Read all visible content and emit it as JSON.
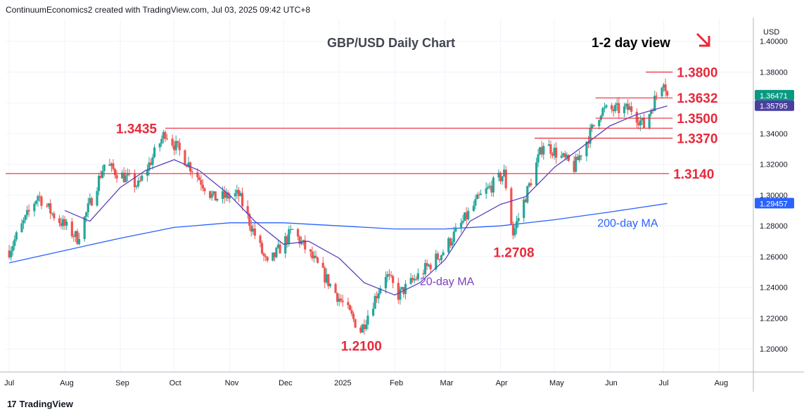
{
  "attribution": "ContinuumEconomics2 created with TradingView.com, Jul 03, 2025 09:42 UTC+8",
  "footer": {
    "brand": "TradingView",
    "logo_icon": "tradingview-logo-icon"
  },
  "colors": {
    "up": "#26a69a",
    "down": "#ef5350",
    "ma20": "#5b3fbf",
    "ma200": "#2962ff",
    "level": "#e8293b",
    "grid": "#f0f3fa"
  },
  "chart_data": {
    "type": "candlestick",
    "title": "GBP/USD Daily Chart",
    "view_label": "1-2 day view",
    "view_icon": "arrow-down-right-icon",
    "currency": "USD",
    "ylim": [
      1.185,
      1.4145
    ],
    "y_ticks": [
      "1.20000",
      "1.22000",
      "1.24000",
      "1.26000",
      "1.28000",
      "1.30000",
      "1.32000",
      "1.34000",
      "1.36000",
      "1.38000",
      "1.40000"
    ],
    "x_labels": [
      {
        "label": "Jul",
        "date": "2024-07-01"
      },
      {
        "label": "Aug",
        "date": "2024-08-01"
      },
      {
        "label": "Sep",
        "date": "2024-09-01"
      },
      {
        "label": "Oct",
        "date": "2024-10-01"
      },
      {
        "label": "Nov",
        "date": "2024-11-01"
      },
      {
        "label": "Dec",
        "date": "2024-12-01"
      },
      {
        "label": "2025",
        "date": "2025-01-01"
      },
      {
        "label": "Feb",
        "date": "2025-02-01"
      },
      {
        "label": "Mar",
        "date": "2025-03-01"
      },
      {
        "label": "Apr",
        "date": "2025-04-01"
      },
      {
        "label": "May",
        "date": "2025-05-01"
      },
      {
        "label": "Jun",
        "date": "2025-06-01"
      },
      {
        "label": "Jul",
        "date": "2025-07-01"
      },
      {
        "label": "Aug",
        "date": "2025-08-01"
      }
    ],
    "xlim": [
      "2024-06-29",
      "2025-08-20"
    ],
    "price_path": [
      [
        "2024-07-01",
        1.264
      ],
      [
        "2024-07-17",
        1.3
      ],
      [
        "2024-07-25",
        1.288
      ],
      [
        "2024-08-08",
        1.272
      ],
      [
        "2024-08-23",
        1.32
      ],
      [
        "2024-09-11",
        1.306
      ],
      [
        "2024-09-26",
        1.341
      ],
      [
        "2024-10-23",
        1.298
      ],
      [
        "2024-11-06",
        1.3
      ],
      [
        "2024-11-22",
        1.254
      ],
      [
        "2024-12-06",
        1.277
      ],
      [
        "2024-12-20",
        1.254
      ],
      [
        "2025-01-13",
        1.212
      ],
      [
        "2025-01-27",
        1.249
      ],
      [
        "2025-02-03",
        1.235
      ],
      [
        "2025-02-27",
        1.262
      ],
      [
        "2025-03-20",
        1.298
      ],
      [
        "2025-04-03",
        1.314
      ],
      [
        "2025-04-08",
        1.275
      ],
      [
        "2025-04-25",
        1.334
      ],
      [
        "2025-05-12",
        1.318
      ],
      [
        "2025-05-27",
        1.355
      ],
      [
        "2025-06-13",
        1.356
      ],
      [
        "2025-06-20",
        1.345
      ],
      [
        "2025-07-01",
        1.376
      ],
      [
        "2025-07-03",
        1.3647
      ]
    ],
    "ma20": [
      [
        "2024-08-01",
        1.29
      ],
      [
        "2024-08-15",
        1.283
      ],
      [
        "2024-09-01",
        1.305
      ],
      [
        "2024-09-15",
        1.316
      ],
      [
        "2024-10-01",
        1.323
      ],
      [
        "2024-10-15",
        1.316
      ],
      [
        "2024-11-01",
        1.3
      ],
      [
        "2024-11-15",
        1.283
      ],
      [
        "2024-12-01",
        1.268
      ],
      [
        "2024-12-15",
        1.27
      ],
      [
        "2025-01-01",
        1.259
      ],
      [
        "2025-01-15",
        1.243
      ],
      [
        "2025-02-01",
        1.235
      ],
      [
        "2025-02-15",
        1.243
      ],
      [
        "2025-03-01",
        1.258
      ],
      [
        "2025-03-15",
        1.283
      ],
      [
        "2025-04-01",
        1.294
      ],
      [
        "2025-04-15",
        1.299
      ],
      [
        "2025-05-01",
        1.318
      ],
      [
        "2025-05-15",
        1.33
      ],
      [
        "2025-06-01",
        1.345
      ],
      [
        "2025-06-15",
        1.352
      ],
      [
        "2025-07-03",
        1.358
      ]
    ],
    "ma200": [
      [
        "2024-07-01",
        1.256
      ],
      [
        "2024-08-01",
        1.264
      ],
      [
        "2024-09-01",
        1.272
      ],
      [
        "2024-10-01",
        1.279
      ],
      [
        "2024-11-01",
        1.282
      ],
      [
        "2024-12-01",
        1.282
      ],
      [
        "2025-01-01",
        1.28
      ],
      [
        "2025-02-01",
        1.278
      ],
      [
        "2025-03-01",
        1.278
      ],
      [
        "2025-04-01",
        1.28
      ],
      [
        "2025-05-01",
        1.284
      ],
      [
        "2025-06-01",
        1.289
      ],
      [
        "2025-07-03",
        1.2946
      ]
    ],
    "levels": [
      {
        "label": "1.3800",
        "value": 1.38,
        "from": "2025-06-21",
        "to": "2025-07-06",
        "label_side": "right"
      },
      {
        "label": "1.3632",
        "value": 1.3632,
        "from": "2025-05-24",
        "to": "2025-07-06",
        "label_side": "right"
      },
      {
        "label": "1.3500",
        "value": 1.35,
        "from": "2025-05-24",
        "to": "2025-07-06",
        "label_side": "right"
      },
      {
        "label": "1.3435",
        "value": 1.3435,
        "from": "2024-09-26",
        "to": "2025-07-06",
        "label_side": "left"
      },
      {
        "label": "1.3370",
        "value": 1.337,
        "from": "2025-04-20",
        "to": "2025-07-06",
        "label_side": "right"
      },
      {
        "label": "1.3140",
        "value": 1.314,
        "from": "2024-06-29",
        "to": "2025-07-04",
        "label_side": "right"
      }
    ],
    "annotations": [
      {
        "label": "1.2708",
        "value": 1.2708,
        "date": "2025-04-08"
      },
      {
        "label": "1.2100",
        "value": 1.21,
        "date": "2025-01-13"
      },
      {
        "label": "20-day MA",
        "series": "ma20"
      },
      {
        "label": "200-day MA",
        "series": "ma200"
      }
    ],
    "price_tags": [
      {
        "label": "1.36471",
        "value": 1.36471,
        "color": "#089981"
      },
      {
        "label": "1.35795",
        "value": 1.35795,
        "color": "#4a3f9f"
      },
      {
        "label": "1.29457",
        "value": 1.29457,
        "color": "#2962ff"
      }
    ]
  }
}
